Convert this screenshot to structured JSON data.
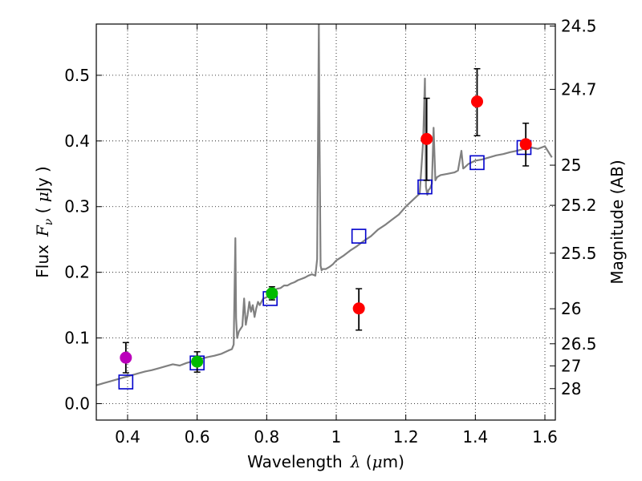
{
  "chart_data": {
    "type": "scatter",
    "xlabel": {
      "prefix": "Wavelength",
      "symbol": "λ",
      "unit_open": " (",
      "unit_mu": "μ",
      "unit_rest": "m)"
    },
    "ylabel": {
      "prefix": "Flux",
      "symbol": "F",
      "subscript": "ν",
      "unit_open": " ( ",
      "unit_mu": "μ",
      "unit_rest": "Jy )"
    },
    "y2label": "Magnitude (AB)",
    "xlim": [
      0.31,
      1.63
    ],
    "ylim": [
      -0.025,
      0.578
    ],
    "grid": true,
    "x_ticks": [
      0.4,
      0.6,
      0.8,
      1.0,
      1.2,
      1.4,
      1.6
    ],
    "x_tick_labels": [
      "0.4",
      "0.6",
      "0.8",
      "1",
      "1.2",
      "1.4",
      "1.6"
    ],
    "y_ticks": [
      0.0,
      0.1,
      0.2,
      0.3,
      0.4,
      0.5
    ],
    "y_tick_labels": [
      "0.0",
      "0.1",
      "0.2",
      "0.3",
      "0.4",
      "0.5"
    ],
    "magnitude_ticks": [
      {
        "label": "24.5",
        "flux": 0.575
      },
      {
        "label": "24.7",
        "flux": 0.4786
      },
      {
        "label": "25",
        "flux": 0.3631
      },
      {
        "label": "25.2",
        "flux": 0.302
      },
      {
        "label": "25.5",
        "flux": 0.2291
      },
      {
        "label": "26",
        "flux": 0.1445
      },
      {
        "label": "26.5",
        "flux": 0.0912
      },
      {
        "label": "27",
        "flux": 0.0575
      },
      {
        "label": "28",
        "flux": 0.0229
      }
    ],
    "series": [
      {
        "name": "model_sed",
        "style": "line",
        "color": "#808080",
        "x": [
          0.31,
          0.33,
          0.35,
          0.37,
          0.39,
          0.41,
          0.43,
          0.45,
          0.47,
          0.49,
          0.51,
          0.53,
          0.55,
          0.57,
          0.59,
          0.61,
          0.63,
          0.65,
          0.67,
          0.69,
          0.7,
          0.705,
          0.71,
          0.712,
          0.715,
          0.72,
          0.73,
          0.735,
          0.74,
          0.745,
          0.75,
          0.755,
          0.76,
          0.765,
          0.77,
          0.775,
          0.78,
          0.79,
          0.8,
          0.81,
          0.82,
          0.83,
          0.84,
          0.85,
          0.86,
          0.87,
          0.88,
          0.89,
          0.9,
          0.91,
          0.92,
          0.93,
          0.94,
          0.945,
          0.95,
          0.952,
          0.955,
          0.958,
          0.96,
          0.97,
          0.98,
          0.99,
          1.0,
          1.02,
          1.04,
          1.06,
          1.08,
          1.1,
          1.12,
          1.14,
          1.16,
          1.18,
          1.2,
          1.22,
          1.24,
          1.25,
          1.255,
          1.258,
          1.262,
          1.265,
          1.27,
          1.275,
          1.28,
          1.285,
          1.29,
          1.3,
          1.32,
          1.34,
          1.35,
          1.36,
          1.365,
          1.37,
          1.38,
          1.4,
          1.42,
          1.44,
          1.46,
          1.48,
          1.5,
          1.52,
          1.54,
          1.56,
          1.58,
          1.6,
          1.62
        ],
        "y": [
          0.028,
          0.031,
          0.034,
          0.037,
          0.04,
          0.043,
          0.046,
          0.049,
          0.051,
          0.054,
          0.057,
          0.06,
          0.058,
          0.062,
          0.065,
          0.068,
          0.071,
          0.073,
          0.076,
          0.081,
          0.083,
          0.09,
          0.252,
          0.13,
          0.1,
          0.11,
          0.118,
          0.16,
          0.12,
          0.135,
          0.155,
          0.14,
          0.15,
          0.132,
          0.145,
          0.155,
          0.15,
          0.16,
          0.162,
          0.168,
          0.172,
          0.175,
          0.176,
          0.18,
          0.18,
          0.183,
          0.185,
          0.188,
          0.19,
          0.192,
          0.195,
          0.197,
          0.195,
          0.22,
          0.578,
          0.4,
          0.21,
          0.203,
          0.205,
          0.205,
          0.208,
          0.212,
          0.218,
          0.225,
          0.233,
          0.24,
          0.248,
          0.255,
          0.265,
          0.272,
          0.28,
          0.288,
          0.3,
          0.31,
          0.32,
          0.4,
          0.495,
          0.33,
          0.318,
          0.325,
          0.328,
          0.335,
          0.42,
          0.34,
          0.345,
          0.348,
          0.35,
          0.352,
          0.355,
          0.385,
          0.358,
          0.36,
          0.365,
          0.37,
          0.372,
          0.375,
          0.378,
          0.38,
          0.383,
          0.385,
          0.388,
          0.39,
          0.388,
          0.392,
          0.375
        ]
      },
      {
        "name": "model_photometry",
        "style": "open-square",
        "color": "#0000cc",
        "x": [
          0.395,
          0.6,
          0.81,
          1.065,
          1.255,
          1.405,
          1.54
        ],
        "y": [
          0.033,
          0.062,
          0.16,
          0.255,
          0.33,
          0.367,
          0.39
        ]
      },
      {
        "name": "observed_red",
        "style": "filled-circle",
        "color": "#ff0000",
        "x": [
          1.065,
          1.26,
          1.405,
          1.545
        ],
        "y": [
          0.145,
          0.403,
          0.46,
          0.395
        ],
        "yerr_low": [
          0.112,
          0.34,
          0.408,
          0.362
        ],
        "yerr_high": [
          0.175,
          0.465,
          0.51,
          0.427
        ]
      },
      {
        "name": "observed_green",
        "style": "filled-circle",
        "color": "#00bb00",
        "x": [
          0.6,
          0.815
        ],
        "y": [
          0.064,
          0.168
        ],
        "yerr_low": [
          0.048,
          0.158
        ],
        "yerr_high": [
          0.079,
          0.178
        ]
      },
      {
        "name": "observed_magenta",
        "style": "filled-circle",
        "color": "#bb00bb",
        "x": [
          0.395
        ],
        "y": [
          0.07
        ],
        "yerr_low": [
          0.047
        ],
        "yerr_high": [
          0.093
        ]
      }
    ]
  }
}
